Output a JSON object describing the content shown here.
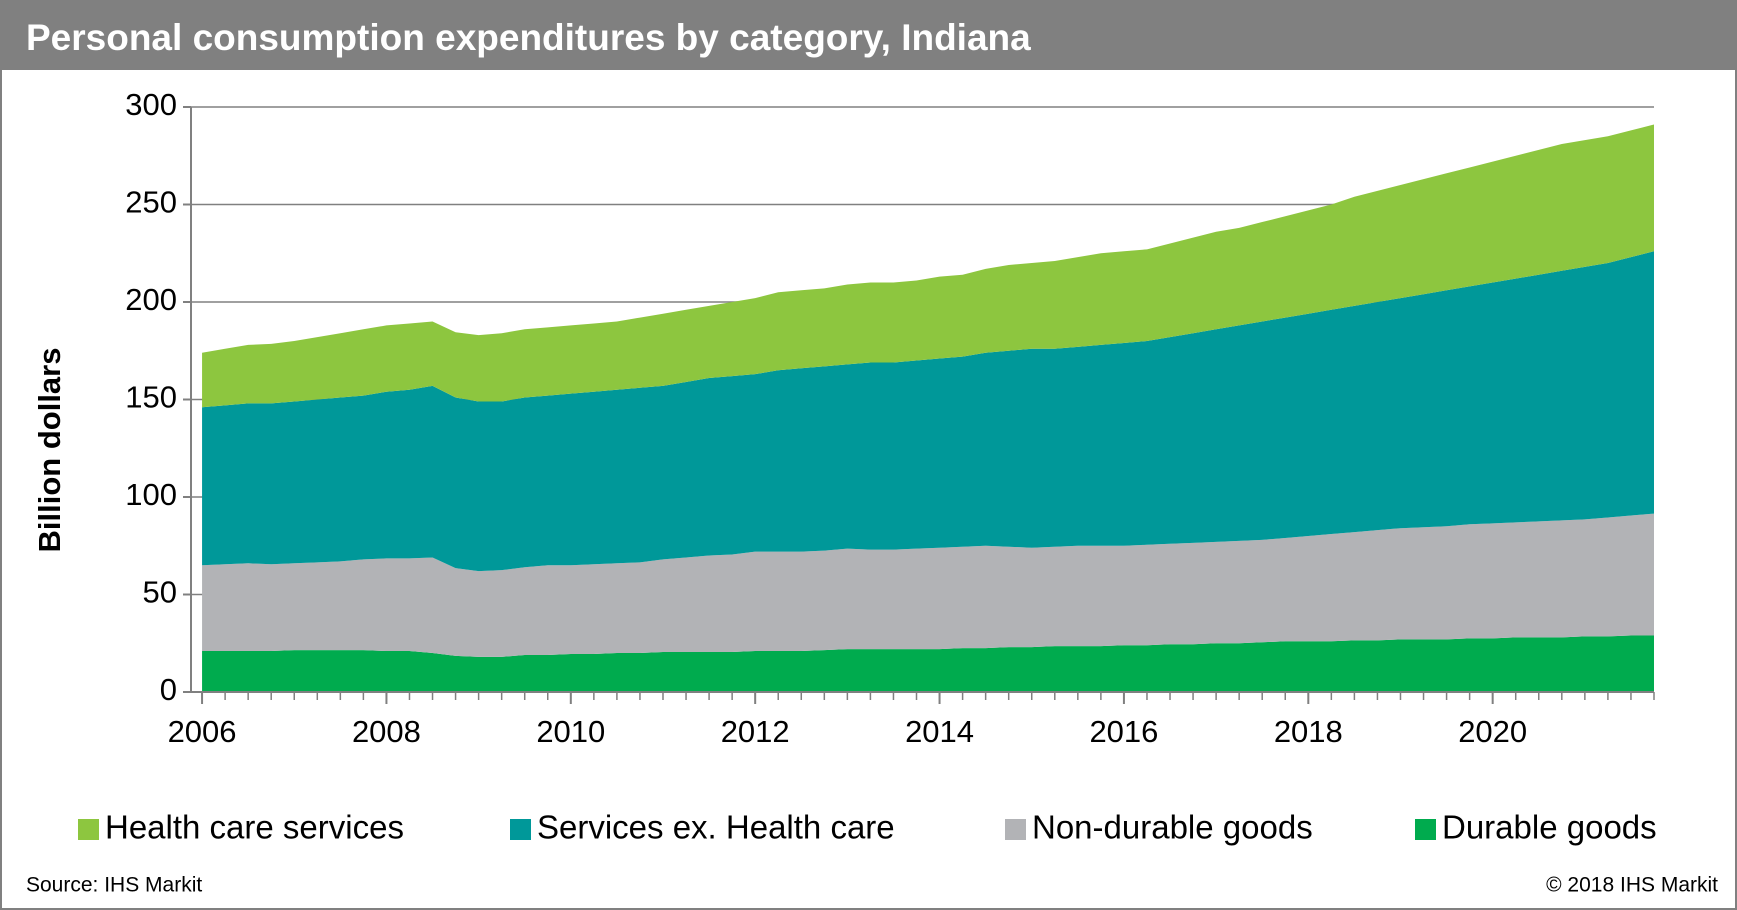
{
  "chart_data": {
    "type": "area",
    "stacked": true,
    "title": "Personal consumption expenditures by category, Indiana",
    "y_label": "Billion dollars",
    "source": "Source: IHS Markit",
    "copyright": "© 2018 IHS Markit",
    "x": [
      2006,
      2006.25,
      2006.5,
      2006.75,
      2007,
      2007.25,
      2007.5,
      2007.75,
      2008,
      2008.25,
      2008.5,
      2008.75,
      2009,
      2009.25,
      2009.5,
      2009.75,
      2010,
      2010.25,
      2010.5,
      2010.75,
      2011,
      2011.25,
      2011.5,
      2011.75,
      2012,
      2012.25,
      2012.5,
      2012.75,
      2013,
      2013.25,
      2013.5,
      2013.75,
      2014,
      2014.25,
      2014.5,
      2014.75,
      2015,
      2015.25,
      2015.5,
      2015.75,
      2016,
      2016.25,
      2016.5,
      2016.75,
      2017,
      2017.25,
      2017.5,
      2017.75,
      2018,
      2018.25,
      2018.5,
      2018.75,
      2019,
      2019.25,
      2019.5,
      2019.75,
      2020,
      2020.25,
      2020.5,
      2020.75,
      2021,
      2021.25,
      2021.5,
      2021.75
    ],
    "series": [
      {
        "name": "Health care services",
        "color": "#8dc63f",
        "values": [
          28,
          29,
          30,
          30.5,
          31,
          32,
          33,
          34,
          34,
          34,
          33,
          33.5,
          34,
          35,
          35,
          35,
          35,
          35,
          35,
          36,
          37,
          37,
          37,
          38,
          39,
          40,
          40,
          40,
          41,
          41,
          41,
          41,
          42,
          42,
          43,
          44,
          44,
          45,
          46,
          47,
          47,
          47,
          48,
          49,
          50,
          50,
          51,
          52,
          53,
          54,
          56,
          57,
          58,
          59,
          60,
          61,
          62,
          63,
          64,
          65,
          65,
          65,
          65,
          65
        ]
      },
      {
        "name": "Services ex. Health care",
        "color": "#009899",
        "values": [
          81,
          81.5,
          82,
          82.5,
          83,
          83.5,
          84,
          84,
          85.5,
          86.5,
          88,
          87.5,
          87,
          86.5,
          87,
          87,
          88,
          88.5,
          89,
          89.5,
          89,
          90,
          91,
          91.5,
          91,
          93,
          94,
          94.5,
          94.5,
          96,
          96,
          96.5,
          97,
          97.5,
          99,
          100.5,
          102,
          101.5,
          102,
          103,
          104,
          104.5,
          106,
          107.5,
          109,
          110.5,
          112,
          113,
          114,
          115,
          116,
          117,
          118,
          119.5,
          121,
          122,
          123.5,
          125,
          126.5,
          128,
          129.5,
          130.5,
          132.5,
          134.5
        ]
      },
      {
        "name": "Non-durable goods",
        "color": "#b2b3b6",
        "values": [
          44,
          44.5,
          45,
          44.5,
          44.5,
          45,
          45.5,
          46.5,
          47.5,
          47.5,
          49,
          45,
          44,
          44.5,
          45,
          46,
          45.5,
          46,
          46,
          46.5,
          47.5,
          48.5,
          49.5,
          50,
          51,
          51,
          51,
          51,
          51.5,
          51,
          51,
          51.5,
          52,
          52,
          52.5,
          51.5,
          51,
          51,
          51.5,
          51.5,
          51,
          51.5,
          51.5,
          52,
          52,
          52.5,
          52.5,
          53,
          54,
          55,
          55.5,
          56.5,
          57,
          57.5,
          58,
          58.5,
          59,
          59,
          59.5,
          60,
          60,
          61,
          61.5,
          62.5
        ]
      },
      {
        "name": "Durable goods",
        "color": "#00ab4e",
        "values": [
          21,
          21,
          21,
          21,
          21.5,
          21.5,
          21.5,
          21.5,
          21,
          21,
          20,
          18.5,
          18,
          18,
          19,
          19,
          19.5,
          19.5,
          20,
          20,
          20.5,
          20.5,
          20.5,
          20.5,
          21,
          21,
          21,
          21.5,
          22,
          22,
          22,
          22,
          22,
          22.5,
          22.5,
          23,
          23,
          23.5,
          23.5,
          23.5,
          24,
          24,
          24.5,
          24.5,
          25,
          25,
          25.5,
          26,
          26,
          26,
          26.5,
          26.5,
          27,
          27,
          27,
          27.5,
          27.5,
          28,
          28,
          28,
          28.5,
          28.5,
          29,
          29
        ]
      }
    ],
    "xlim": [
      2005.88,
      2021.75
    ],
    "xticks": [
      2006,
      2008,
      2010,
      2012,
      2014,
      2016,
      2018,
      2020
    ],
    "ylim": [
      0,
      300
    ],
    "yticks": [
      0,
      50,
      100,
      150,
      200,
      250,
      300
    ],
    "grid": true,
    "legend": "bottom"
  }
}
